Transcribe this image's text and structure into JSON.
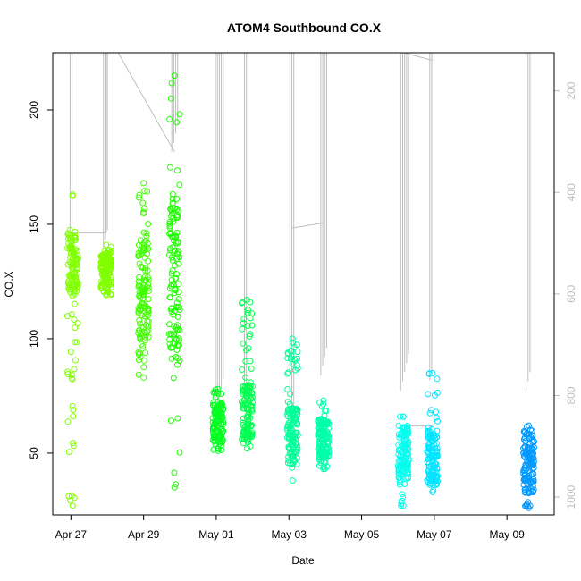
{
  "chart_data": {
    "type": "scatter",
    "title": "ATOM4 Southbound CO.X",
    "xlabel": "Date",
    "ylabel": "CO.X",
    "x_ticks": [
      "Apr 27",
      "Apr 29",
      "May 01",
      "May 03",
      "May 05",
      "May 07",
      "May 09"
    ],
    "x_tick_days": [
      0,
      2,
      4,
      6,
      8,
      10,
      12
    ],
    "xlim_days": [
      -0.5,
      13.3
    ],
    "ylim": [
      23,
      225
    ],
    "y_ticks": [
      50,
      100,
      150,
      200
    ],
    "secondary_y": {
      "ticks": [
        200,
        400,
        600,
        800,
        1000
      ],
      "range_reversed": [
        125,
        1035
      ],
      "color": "#bebebe"
    },
    "grid": false,
    "legend": "none",
    "point_clusters": [
      {
        "x_day": 0.05,
        "y_min": 27,
        "y_max": 163,
        "dense_min": 120,
        "dense_max": 148,
        "color": "#80ff00"
      },
      {
        "x_day": 0.97,
        "y_min": 119,
        "y_max": 141,
        "dense_min": 122,
        "dense_max": 138,
        "color": "#80ff00"
      },
      {
        "x_day": 2.0,
        "y_min": 83,
        "y_max": 168,
        "dense_min": 90,
        "dense_max": 145,
        "color": "#40ff00"
      },
      {
        "x_day": 2.85,
        "y_min": 35,
        "y_max": 215,
        "dense_min": 95,
        "dense_max": 160,
        "color": "#20ff00"
      },
      {
        "x_day": 4.05,
        "y_min": 51,
        "y_max": 78,
        "dense_min": 55,
        "dense_max": 72,
        "color": "#00ff20"
      },
      {
        "x_day": 4.85,
        "y_min": 52,
        "y_max": 117,
        "dense_min": 56,
        "dense_max": 80,
        "color": "#00ff50"
      },
      {
        "x_day": 6.1,
        "y_min": 38,
        "y_max": 100,
        "dense_min": 45,
        "dense_max": 70,
        "color": "#00ff99"
      },
      {
        "x_day": 6.95,
        "y_min": 43,
        "y_max": 73,
        "dense_min": 47,
        "dense_max": 65,
        "color": "#00ffaa"
      },
      {
        "x_day": 9.15,
        "y_min": 27,
        "y_max": 66,
        "dense_min": 38,
        "dense_max": 62,
        "color": "#00ffee"
      },
      {
        "x_day": 9.95,
        "y_min": 33,
        "y_max": 85,
        "dense_min": 36,
        "dense_max": 60,
        "color": "#00e5ff"
      },
      {
        "x_day": 12.6,
        "y_min": 26,
        "y_max": 62,
        "dense_min": 32,
        "dense_max": 60,
        "color": "#0099ff"
      }
    ],
    "depth_profile_lines": [
      {
        "x_day": 0.05,
        "min_secondary": 125,
        "max_secondary": 480
      },
      {
        "x_day": 0.97,
        "min_secondary": 125,
        "max_secondary": 510
      },
      {
        "x_day": 2.85,
        "min_secondary": 125,
        "max_secondary": 320
      },
      {
        "x_day": 4.05,
        "min_secondary": 125,
        "max_secondary": 840
      },
      {
        "x_day": 4.85,
        "min_secondary": 125,
        "max_secondary": 820
      },
      {
        "x_day": 6.1,
        "min_secondary": 125,
        "max_secondary": 870
      },
      {
        "x_day": 6.95,
        "min_secondary": 125,
        "max_secondary": 760
      },
      {
        "x_day": 9.15,
        "min_secondary": 125,
        "max_secondary": 790
      },
      {
        "x_day": 9.95,
        "min_secondary": 125,
        "max_secondary": 770
      },
      {
        "x_day": 12.6,
        "min_secondary": 125,
        "max_secondary": 790
      }
    ]
  }
}
